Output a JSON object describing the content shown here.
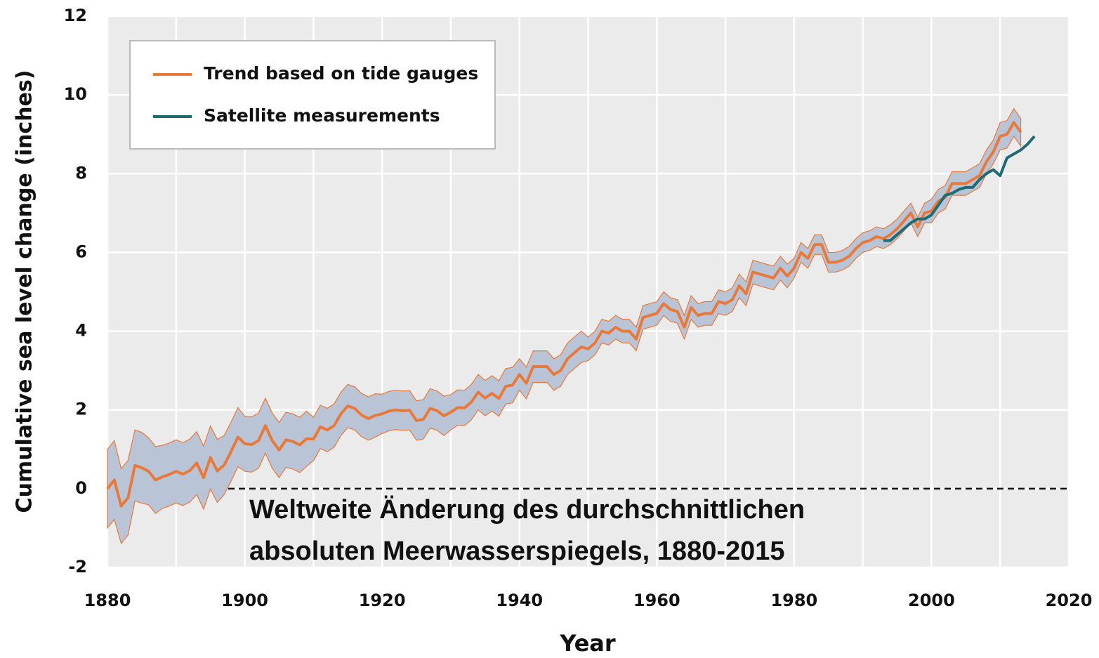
{
  "chart_data": {
    "type": "line",
    "annotation": [
      "Weltweite Änderung des durchschnittlichen",
      "absoluten Meerwasserspiegels, 1880-2015"
    ],
    "xlabel": "Year",
    "ylabel": "Cumulative sea level change (inches)",
    "xlim": [
      1880,
      2020
    ],
    "ylim": [
      -2,
      12
    ],
    "xticks": [
      1880,
      1900,
      1920,
      1940,
      1960,
      1980,
      2000,
      2020
    ],
    "xminorticks": [
      1890,
      1910,
      1930,
      1950,
      1970,
      1990,
      2010
    ],
    "yticks": [
      -2,
      0,
      2,
      4,
      6,
      8,
      10,
      12
    ],
    "grid": true,
    "legend": "upper left",
    "reference_line": 0,
    "series": [
      {
        "name": "Trend based on tide gauges",
        "color": "#e8793a",
        "band_color": "#b9c5d6",
        "x": [
          1880,
          1881,
          1882,
          1883,
          1884,
          1885,
          1886,
          1887,
          1888,
          1889,
          1890,
          1891,
          1892,
          1893,
          1894,
          1895,
          1896,
          1897,
          1898,
          1899,
          1900,
          1901,
          1902,
          1903,
          1904,
          1905,
          1906,
          1907,
          1908,
          1909,
          1910,
          1911,
          1912,
          1913,
          1914,
          1915,
          1916,
          1917,
          1918,
          1919,
          1920,
          1921,
          1922,
          1923,
          1924,
          1925,
          1926,
          1927,
          1928,
          1929,
          1930,
          1931,
          1932,
          1933,
          1934,
          1935,
          1936,
          1937,
          1938,
          1939,
          1940,
          1941,
          1942,
          1943,
          1944,
          1945,
          1946,
          1947,
          1948,
          1949,
          1950,
          1951,
          1952,
          1953,
          1954,
          1955,
          1956,
          1957,
          1958,
          1959,
          1960,
          1961,
          1962,
          1963,
          1964,
          1965,
          1966,
          1967,
          1968,
          1969,
          1970,
          1971,
          1972,
          1973,
          1974,
          1975,
          1976,
          1977,
          1978,
          1979,
          1980,
          1981,
          1982,
          1983,
          1984,
          1985,
          1986,
          1987,
          1988,
          1989,
          1990,
          1991,
          1992,
          1993,
          1994,
          1995,
          1996,
          1997,
          1998,
          1999,
          2000,
          2001,
          2002,
          2003,
          2004,
          2005,
          2006,
          2007,
          2008,
          2009,
          2010,
          2011,
          2012,
          2013
        ],
        "values": [
          0,
          0.22,
          -0.44,
          -0.23,
          0.59,
          0.53,
          0.44,
          0.22,
          0.3,
          0.36,
          0.44,
          0.37,
          0.46,
          0.65,
          0.28,
          0.79,
          0.45,
          0.6,
          0.94,
          1.31,
          1.14,
          1.12,
          1.22,
          1.6,
          1.22,
          0.98,
          1.24,
          1.2,
          1.11,
          1.27,
          1.26,
          1.57,
          1.49,
          1.6,
          1.9,
          2.1,
          2.04,
          1.87,
          1.78,
          1.86,
          1.9,
          1.97,
          2.0,
          1.98,
          1.99,
          1.73,
          1.76,
          2.04,
          1.98,
          1.85,
          1.94,
          2.06,
          2.05,
          2.2,
          2.45,
          2.3,
          2.42,
          2.29,
          2.6,
          2.63,
          2.9,
          2.68,
          3.1,
          3.1,
          3.1,
          2.9,
          3.0,
          3.3,
          3.45,
          3.6,
          3.55,
          3.7,
          4.0,
          3.95,
          4.1,
          4.0,
          4.0,
          3.8,
          4.35,
          4.4,
          4.45,
          4.7,
          4.55,
          4.5,
          4.1,
          4.6,
          4.4,
          4.45,
          4.45,
          4.75,
          4.7,
          4.8,
          5.15,
          4.95,
          5.5,
          5.45,
          5.4,
          5.35,
          5.6,
          5.4,
          5.6,
          6.0,
          5.85,
          6.2,
          6.2,
          5.75,
          5.75,
          5.8,
          5.9,
          6.1,
          6.25,
          6.3,
          6.4,
          6.35,
          6.45,
          6.6,
          6.8,
          7.0,
          6.65,
          7.0,
          7.05,
          7.3,
          7.4,
          7.75,
          7.75,
          7.75,
          7.85,
          7.95,
          8.3,
          8.55,
          8.95,
          9.0,
          9.3,
          9.05
        ],
        "errors": [
          1.0,
          1.0,
          0.95,
          0.95,
          0.9,
          0.9,
          0.85,
          0.85,
          0.8,
          0.8,
          0.8,
          0.8,
          0.8,
          0.8,
          0.8,
          0.8,
          0.8,
          0.75,
          0.75,
          0.75,
          0.7,
          0.7,
          0.7,
          0.7,
          0.7,
          0.7,
          0.7,
          0.7,
          0.7,
          0.7,
          0.55,
          0.55,
          0.55,
          0.55,
          0.55,
          0.55,
          0.55,
          0.55,
          0.55,
          0.55,
          0.5,
          0.5,
          0.5,
          0.5,
          0.5,
          0.5,
          0.5,
          0.5,
          0.5,
          0.5,
          0.45,
          0.45,
          0.45,
          0.45,
          0.45,
          0.45,
          0.45,
          0.45,
          0.45,
          0.45,
          0.4,
          0.4,
          0.4,
          0.4,
          0.4,
          0.4,
          0.4,
          0.4,
          0.4,
          0.4,
          0.3,
          0.3,
          0.3,
          0.3,
          0.3,
          0.3,
          0.3,
          0.3,
          0.3,
          0.3,
          0.3,
          0.3,
          0.3,
          0.3,
          0.3,
          0.3,
          0.3,
          0.3,
          0.3,
          0.3,
          0.3,
          0.3,
          0.3,
          0.3,
          0.3,
          0.3,
          0.3,
          0.3,
          0.3,
          0.3,
          0.25,
          0.25,
          0.25,
          0.25,
          0.25,
          0.25,
          0.25,
          0.25,
          0.25,
          0.25,
          0.25,
          0.25,
          0.25,
          0.25,
          0.25,
          0.25,
          0.25,
          0.25,
          0.25,
          0.25,
          0.3,
          0.3,
          0.3,
          0.3,
          0.3,
          0.3,
          0.3,
          0.3,
          0.3,
          0.3,
          0.35,
          0.35,
          0.35,
          0.35
        ]
      },
      {
        "name": "Satellite measurements",
        "color": "#1f6b74",
        "x": [
          1993,
          1994,
          1995,
          1996,
          1997,
          1998,
          1999,
          2000,
          2001,
          2002,
          2003,
          2004,
          2005,
          2006,
          2007,
          2008,
          2009,
          2010,
          2011,
          2012,
          2013,
          2014,
          2015
        ],
        "values": [
          6.3,
          6.3,
          6.45,
          6.6,
          6.75,
          6.85,
          6.85,
          6.95,
          7.2,
          7.45,
          7.5,
          7.6,
          7.65,
          7.65,
          7.85,
          8.0,
          8.1,
          7.95,
          8.4,
          8.5,
          8.6,
          8.75,
          8.95
        ]
      }
    ]
  }
}
